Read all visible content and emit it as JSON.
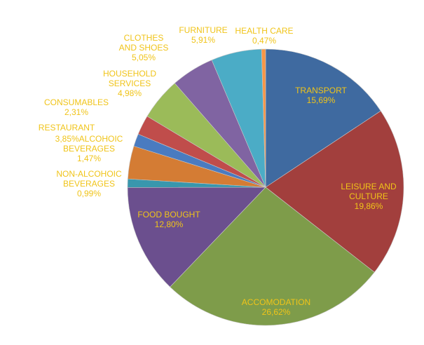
{
  "chart_data": {
    "type": "pie",
    "title": "",
    "label_color": "#f0c419",
    "center": [
      379,
      267
    ],
    "radius": 197,
    "start_angle_deg": 0,
    "direction": "clockwise",
    "slices": [
      {
        "name": "TRANSPORT",
        "value": 15.69,
        "label": "15,69%",
        "color": "#3f6aa0"
      },
      {
        "name": "LEISURE AND CULTURE",
        "value": 19.86,
        "label": "19,86%",
        "color": "#a23f3d"
      },
      {
        "name": "ACCOMODATION",
        "value": 26.62,
        "label": "26,62%",
        "color": "#7e9c4a"
      },
      {
        "name": "FOOD BOUGHT",
        "value": 12.8,
        "label": "12,80%",
        "color": "#6b4f8e"
      },
      {
        "name": "NON-ALCOHOIC BEVERAGES",
        "value": 0.99,
        "label": "0,99%",
        "color": "#3997ad"
      },
      {
        "name": "RESTAURANT",
        "value": 3.85,
        "label": "3,85%",
        "color": "#d47c34"
      },
      {
        "name": "ALCOHOIC BEVERAGES",
        "value": 1.47,
        "label": "1,47%",
        "color": "#4a7bc0"
      },
      {
        "name": "CONSUMABLES",
        "value": 2.31,
        "label": "2,31%",
        "color": "#c04d4b"
      },
      {
        "name": "HOUSEHOLD SERVICES",
        "value": 4.98,
        "label": "4,98%",
        "color": "#9bbb59"
      },
      {
        "name": "CLOTHES AND SHOES",
        "value": 5.05,
        "label": "5,05%",
        "color": "#8064a2"
      },
      {
        "name": "FURNITURE",
        "value": 5.91,
        "label": "5,91%",
        "color": "#4bacc6"
      },
      {
        "name": "HEALTH CARE",
        "value": 0.47,
        "label": "0,47%",
        "color": "#f79646"
      }
    ]
  },
  "labels": {
    "transport": {
      "line1": "TRANSPORT",
      "line2": "15,69%"
    },
    "leisure": {
      "line1": "LEISURE AND",
      "line2": "CULTURE",
      "line3": "19,86%"
    },
    "accomodation": {
      "line1": "ACCOMODATION",
      "line2": "26,62%"
    },
    "food": {
      "line1": "FOOD BOUGHT",
      "line2": "12,80%"
    },
    "nonalc": {
      "line1": "NON-ALCOHOIC",
      "line2": "BEVERAGES",
      "line3": "0,99%"
    },
    "restaurant": {
      "line1": "RESTAURANT"
    },
    "alcoholic": {
      "line1": "3,85%ALCOHOIC",
      "line2": "BEVERAGES",
      "line3": "1,47%"
    },
    "consumables": {
      "line1": "CONSUMABLES",
      "line2": "2,31%"
    },
    "household": {
      "line1": "HOUSEHOLD",
      "line2": "SERVICES",
      "line3": "4,98%"
    },
    "clothes": {
      "line1": "CLOTHES",
      "line2": "AND SHOES",
      "line3": "5,05%"
    },
    "furniture": {
      "line1": "FURNITURE",
      "line2": "5,91%"
    },
    "health": {
      "line1": "HEALTH CARE",
      "line2": "0,47%"
    }
  }
}
